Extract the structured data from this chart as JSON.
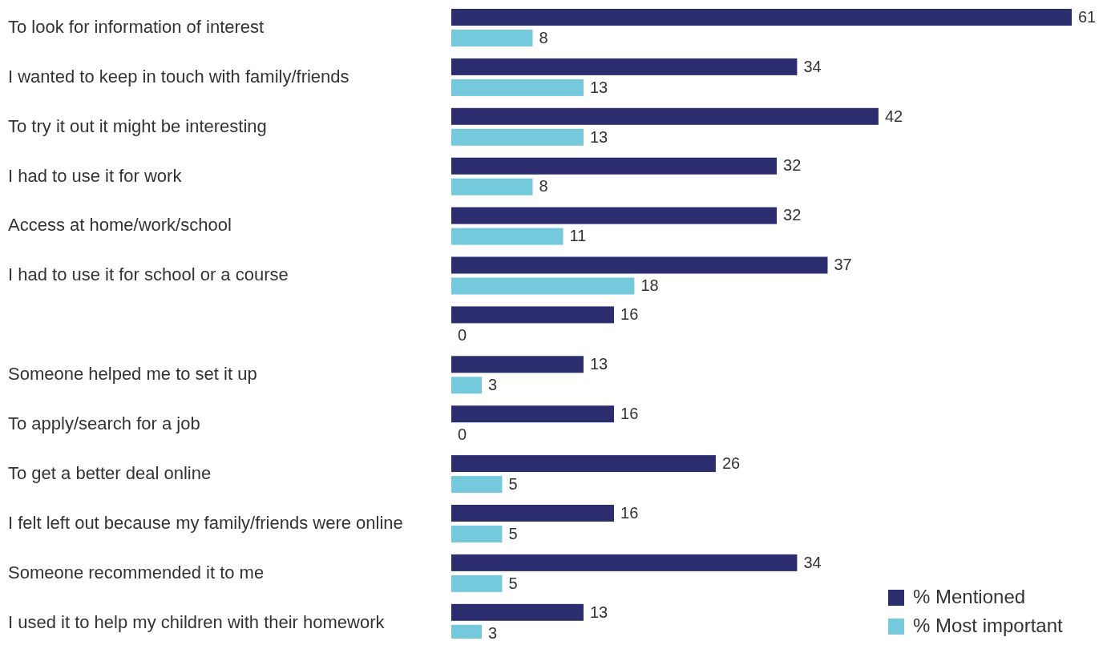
{
  "chart_data": {
    "type": "bar",
    "orientation": "horizontal",
    "categories": [
      "To look for information of interest",
      "I wanted to keep in touch with family/friends",
      "To try it out it might be interesting",
      "I had to use it for work",
      "Access at home/work/school",
      "I had to use it for school or a course",
      null,
      "Someone helped me to set it up",
      "To apply/search for a job",
      "To get a better deal online",
      "I felt left out because my family/friends were online",
      "Someone recommended it to me",
      "I used it to help my children with their homework"
    ],
    "series": [
      {
        "name": "% Mentioned",
        "color": "#2b2d6e",
        "values": [
          61,
          34,
          42,
          32,
          32,
          37,
          16,
          13,
          16,
          26,
          16,
          34,
          13
        ]
      },
      {
        "name": "% Most important",
        "color": "#74c9dc",
        "values": [
          8,
          13,
          13,
          8,
          11,
          18,
          0,
          3,
          0,
          5,
          5,
          5,
          3
        ]
      }
    ],
    "data_labels": true,
    "legend": "bottom right"
  }
}
